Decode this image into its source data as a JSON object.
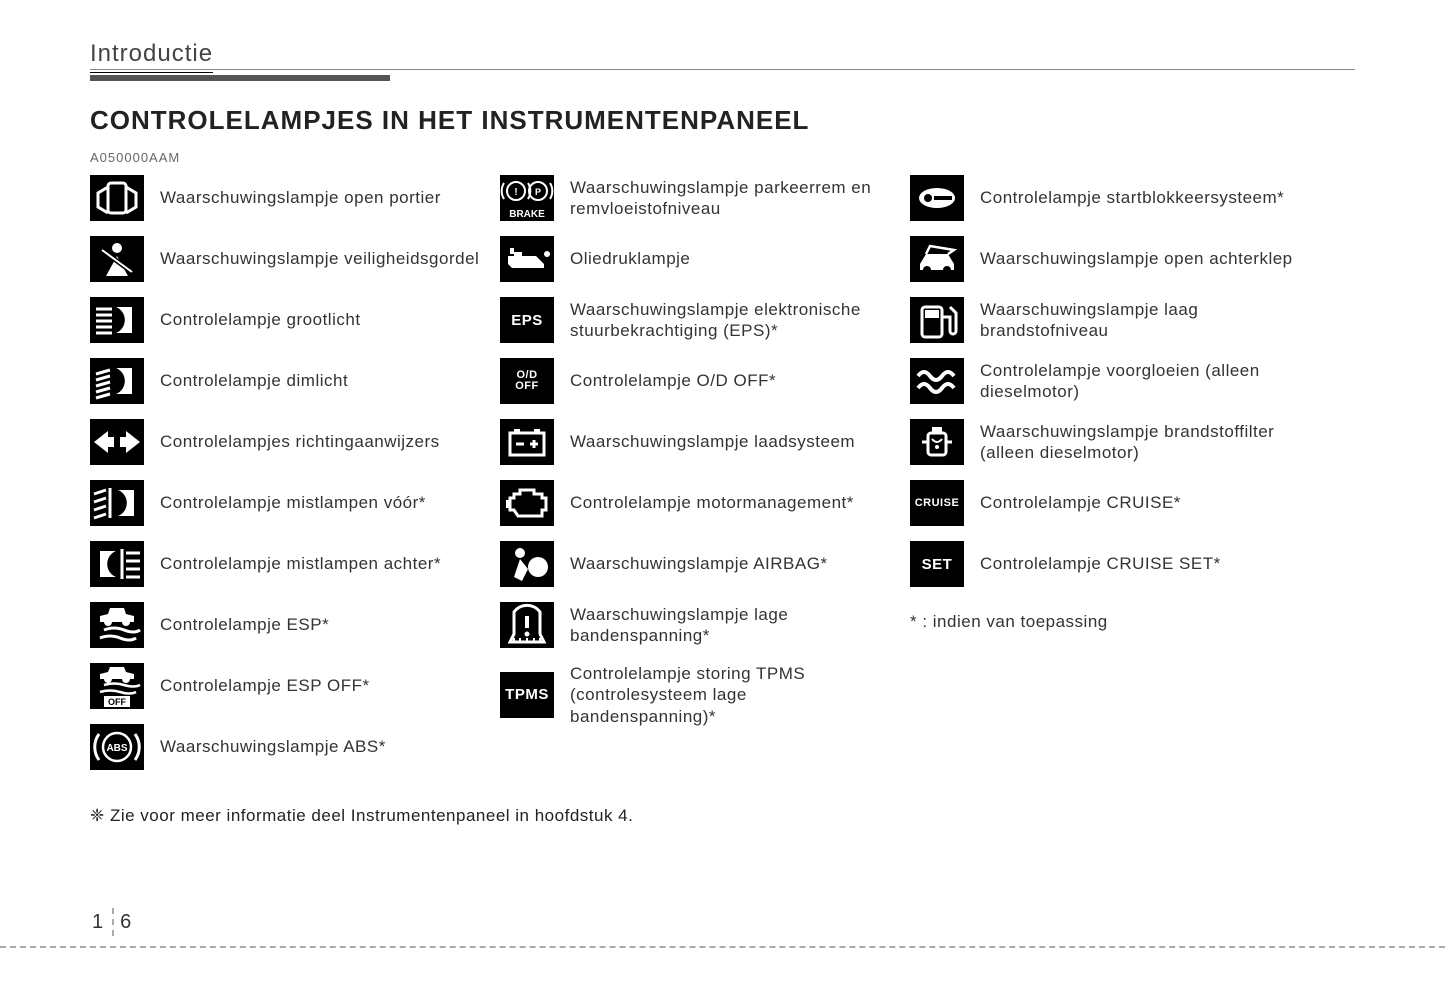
{
  "style": {
    "background_color": "#ffffff",
    "text_color": "#333333",
    "icon_bg": "#000000",
    "icon_fg": "#ffffff",
    "rule_color": "#555555",
    "dashed_color": "#aaaaaa",
    "font_family": "Verdana",
    "title_fontsize": 26,
    "label_fontsize": 17,
    "icon_size": [
      54,
      46
    ]
  },
  "header": {
    "section": "Introductie",
    "title": "CONTROLELAMPJES IN HET INSTRUMENTENPANEEL",
    "code": "A050000AAM"
  },
  "columns": [
    [
      {
        "icon": "door-open",
        "label": "Waarschuwingslampje open portier"
      },
      {
        "icon": "seatbelt",
        "label": "Waarschuwingslampje veiligheidsgordel"
      },
      {
        "icon": "high-beam",
        "label": "Controlelampje grootlicht"
      },
      {
        "icon": "low-beam",
        "label": "Controlelampje dimlicht"
      },
      {
        "icon": "turn-signals",
        "label": "Controlelampjes richtingaanwijzers"
      },
      {
        "icon": "fog-front",
        "label": "Controlelampje mistlampen vóór*"
      },
      {
        "icon": "fog-rear",
        "label": "Controlelampje mistlampen achter*"
      },
      {
        "icon": "esp",
        "label": "Controlelampje ESP*"
      },
      {
        "icon": "esp-off",
        "label": "Controlelampje ESP OFF*"
      },
      {
        "icon": "abs",
        "label": "Waarschuwingslampje ABS*"
      }
    ],
    [
      {
        "icon": "brake",
        "label": "Waarschuwingslampje parkeerrem en remvloeistofniveau"
      },
      {
        "icon": "oil",
        "label": "Oliedruklampje"
      },
      {
        "icon": "eps-text",
        "icon_text": "EPS",
        "label": "Waarschuwingslampje elektronische stuurbekrachtiging (EPS)*"
      },
      {
        "icon": "od-off-text",
        "icon_text": "O/D\nOFF",
        "label": "Controlelampje O/D OFF*"
      },
      {
        "icon": "battery",
        "label": "Waarschuwingslampje laadsysteem"
      },
      {
        "icon": "engine",
        "label": "Controlelampje motormanagement*"
      },
      {
        "icon": "airbag",
        "label": "Waarschuwingslampje AIRBAG*"
      },
      {
        "icon": "tire-pressure",
        "label": "Waarschuwingslampje lage bandenspanning*"
      },
      {
        "icon": "tpms-text",
        "icon_text": "TPMS",
        "label": "Controlelampje storing TPMS (controlesysteem lage bandenspanning)*"
      }
    ],
    [
      {
        "icon": "immobilizer",
        "label": "Controlelampje startblokkeersysteem*"
      },
      {
        "icon": "trunk",
        "label": "Waarschuwingslampje open achterklep"
      },
      {
        "icon": "fuel",
        "label": "Waarschuwingslampje laag brandstofniveau"
      },
      {
        "icon": "glow-plug",
        "label": "Controlelampje voorgloeien (alleen dieselmotor)"
      },
      {
        "icon": "fuel-filter",
        "label": "Waarschuwingslampje brandstoffilter (alleen dieselmotor)"
      },
      {
        "icon": "cruise-text",
        "icon_text": "CRUISE",
        "label": "Controlelampje CRUISE*"
      },
      {
        "icon": "set-text",
        "icon_text": "SET",
        "label": "Controlelampje CRUISE SET*"
      },
      {
        "icon": "",
        "label": "* : indien van toepassing",
        "no_icon": true
      }
    ]
  ],
  "footnote": "❈ Zie voor meer informatie deel Instrumentenpaneel in hoofdstuk 4.",
  "page_number": {
    "chapter": "1",
    "page": "6"
  }
}
